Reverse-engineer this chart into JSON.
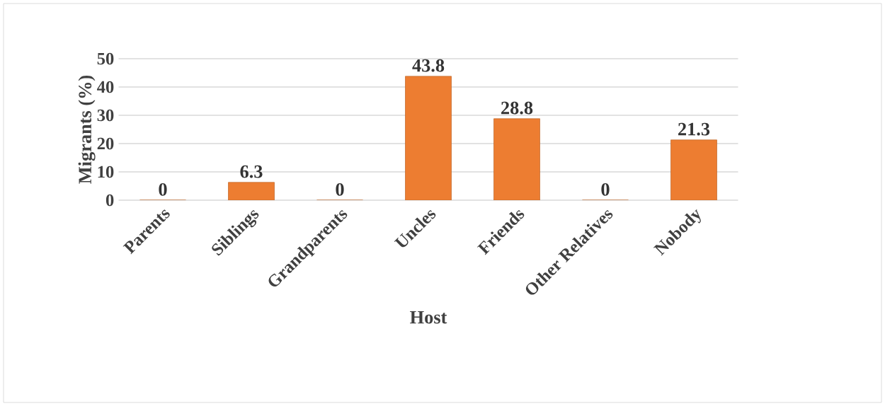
{
  "chart_data": {
    "type": "bar",
    "xlabel": "Host",
    "ylabel": "Migrants  (%)",
    "categories": [
      "Parents",
      "Siblings",
      "Grandparents",
      "Uncles",
      "Friends",
      "Other Relatives",
      "Nobody"
    ],
    "values": [
      0,
      6.3,
      0,
      43.8,
      28.8,
      0,
      21.3
    ],
    "color": "#ed7d31",
    "ylim": [
      0,
      50
    ],
    "yticks": [
      0,
      10,
      20,
      30,
      40,
      50
    ],
    "grid": "y",
    "data_labels": true
  }
}
